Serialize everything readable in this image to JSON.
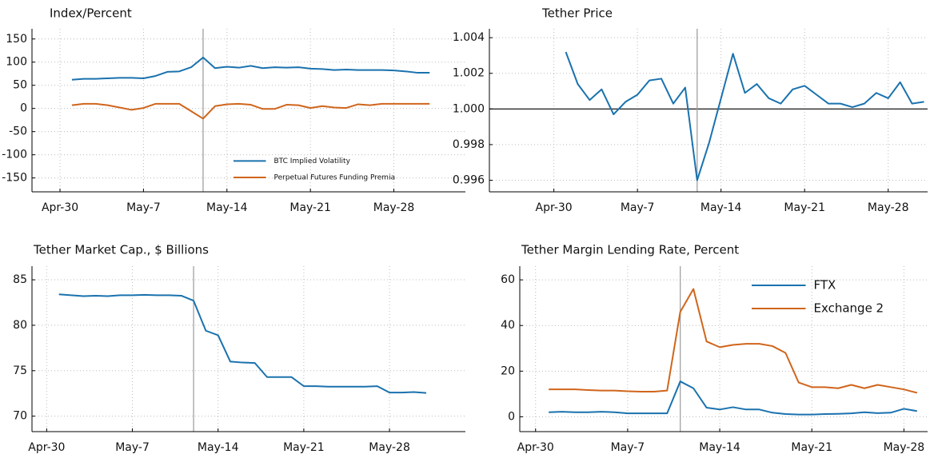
{
  "chart_data": [
    {
      "type": "line",
      "title": "Index/Percent",
      "x": [
        1,
        2,
        3,
        4,
        5,
        6,
        7,
        8,
        9,
        10,
        11,
        12,
        13,
        14,
        15,
        16,
        17,
        18,
        19,
        20,
        21,
        22,
        23,
        24,
        25,
        26,
        27,
        28,
        29,
        30,
        31
      ],
      "series": [
        {
          "name": "BTC Implied Volatility",
          "color": "#1a72ae",
          "values": [
            62,
            64,
            64,
            65,
            66,
            66,
            65,
            70,
            79,
            80,
            89,
            110,
            87,
            90,
            88,
            92,
            87,
            89,
            88,
            89,
            86,
            85,
            83,
            84,
            83,
            83,
            83,
            82,
            80,
            77,
            77
          ]
        },
        {
          "name": "Perpetual Futures Funding Premia",
          "color": "#d0651c",
          "values": [
            7,
            10,
            10,
            7,
            2,
            -3,
            1,
            10,
            10,
            10,
            -6,
            -22,
            5,
            9,
            10,
            8,
            -1,
            -1,
            8,
            7,
            1,
            5,
            2,
            1,
            9,
            7,
            10,
            10,
            10,
            10,
            10
          ]
        }
      ],
      "xlim": [
        -2.35,
        34
      ],
      "xticks": [
        {
          "value": 0,
          "label": "Apr-30"
        },
        {
          "value": 7,
          "label": "May-7"
        },
        {
          "value": 14,
          "label": "May-14"
        },
        {
          "value": 21,
          "label": "May-21"
        },
        {
          "value": 28,
          "label": "May-28"
        }
      ],
      "ylim": [
        -180,
        172
      ],
      "yticks": [
        -150,
        -100,
        -50,
        0,
        50,
        100,
        150
      ],
      "grid": true,
      "vline": 12,
      "legend": "lower right"
    },
    {
      "type": "line",
      "title": "Tether Price",
      "x": [
        1,
        2,
        3,
        4,
        5,
        6,
        7,
        8,
        9,
        10,
        11,
        12,
        13,
        14,
        15,
        16,
        17,
        18,
        19,
        20,
        21,
        22,
        23,
        24,
        25,
        26,
        27,
        28,
        29,
        30,
        31
      ],
      "series": [
        {
          "color": "#1a72ae",
          "values": [
            1.0032,
            1.0014,
            1.0005,
            1.0011,
            0.9997,
            1.0004,
            1.0008,
            1.0016,
            1.0017,
            1.0003,
            1.0012,
            0.996,
            0.9981,
            1.0006,
            1.0031,
            1.0009,
            1.0014,
            1.0006,
            1.0003,
            1.0011,
            1.0013,
            1.0008,
            1.0003,
            1.0003,
            1.0001,
            1.0003,
            1.0009,
            1.0006,
            1.0015,
            1.0003,
            1.0004
          ]
        }
      ],
      "xlim": [
        -5.4,
        31.3
      ],
      "xticks": [
        {
          "value": 0,
          "label": "Apr-30"
        },
        {
          "value": 7,
          "label": "May-7"
        },
        {
          "value": 14,
          "label": "May-14"
        },
        {
          "value": 21,
          "label": "May-21"
        },
        {
          "value": 28,
          "label": "May-28"
        }
      ],
      "ylim": [
        0.99535,
        1.0045
      ],
      "yticks": [
        0.996,
        0.998,
        {
          "value": 1,
          "label": "1.000"
        },
        1.002,
        1.004
      ],
      "grid": true,
      "vline": 12,
      "hline": 1
    },
    {
      "type": "line",
      "title": "Tether Market Cap., $ Billions",
      "x": [
        1,
        2,
        3,
        4,
        5,
        6,
        7,
        8,
        9,
        10,
        11,
        12,
        13,
        14,
        15,
        16,
        17,
        18,
        19,
        20,
        21,
        22,
        23,
        24,
        25,
        26,
        27,
        28,
        29,
        30,
        31
      ],
      "series": [
        {
          "color": "#1a72ae",
          "values": [
            83.4,
            83.3,
            83.2,
            83.25,
            83.2,
            83.3,
            83.3,
            83.35,
            83.3,
            83.3,
            83.25,
            82.7,
            79.4,
            78.9,
            76,
            75.9,
            75.85,
            74.3,
            74.3,
            74.3,
            73.3,
            73.3,
            73.25,
            73.25,
            73.25,
            73.25,
            73.3,
            72.6,
            72.6,
            72.65,
            72.55
          ]
        }
      ],
      "xlim": [
        -1.2,
        34.2
      ],
      "xticks": [
        {
          "value": 0,
          "label": "Apr-30"
        },
        {
          "value": 7,
          "label": "May-7"
        },
        {
          "value": 14,
          "label": "May-14"
        },
        {
          "value": 21,
          "label": "May-21"
        },
        {
          "value": 28,
          "label": "May-28"
        }
      ],
      "ylim": [
        68.3,
        86.5
      ],
      "yticks": [
        70,
        75,
        80,
        85
      ],
      "grid": true,
      "vline": 12
    },
    {
      "type": "line",
      "title": "Tether Margin Lending Rate, Percent",
      "x": [
        1,
        2,
        3,
        4,
        5,
        6,
        7,
        8,
        9,
        10,
        11,
        12,
        13,
        14,
        15,
        16,
        17,
        18,
        19,
        20,
        21,
        22,
        23,
        24,
        25,
        26,
        27,
        28,
        29
      ],
      "series": [
        {
          "name": "FTX",
          "color": "#1a72ae",
          "values": [
            2,
            2.2,
            2,
            2,
            2.2,
            2,
            1.5,
            1.5,
            1.5,
            1.5,
            15.5,
            12.5,
            4,
            3.2,
            4.2,
            3.2,
            3.2,
            1.8,
            1.2,
            1,
            1,
            1.2,
            1.3,
            1.5,
            2,
            1.6,
            1.8,
            3.5,
            2.5
          ]
        },
        {
          "name": "Exchange 2",
          "color": "#d0651c",
          "values": [
            12,
            12,
            12,
            11.7,
            11.5,
            11.5,
            11.2,
            11,
            11,
            11.5,
            46,
            56,
            33,
            30.5,
            31.5,
            32,
            32,
            31,
            28,
            15,
            13,
            13,
            12.5,
            14,
            12.5,
            14,
            13,
            12,
            10.5
          ]
        }
      ],
      "xlim": [
        -1.2,
        29.8
      ],
      "xticks": [
        {
          "value": 0,
          "label": "Apr-30"
        },
        {
          "value": 7,
          "label": "May-7"
        },
        {
          "value": 14,
          "label": "May-14"
        },
        {
          "value": 21,
          "label": "May-21"
        },
        {
          "value": 28,
          "label": "May-28"
        }
      ],
      "ylim": [
        -6.5,
        66
      ],
      "yticks": [
        0,
        20,
        40,
        60
      ],
      "grid": true,
      "vline": 11,
      "legend": "upper right"
    }
  ]
}
